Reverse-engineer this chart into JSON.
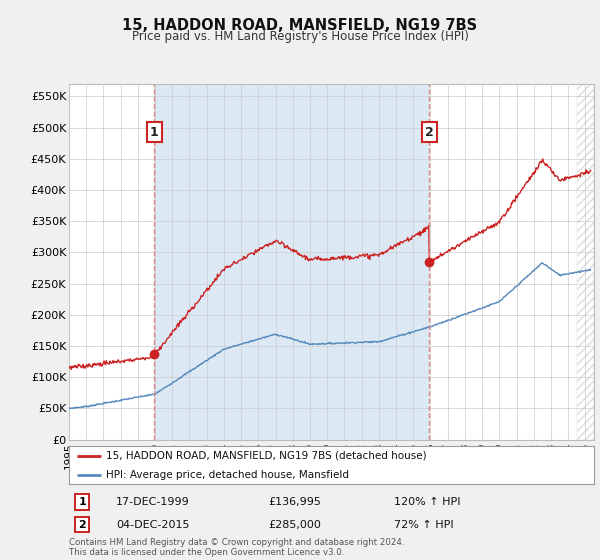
{
  "title": "15, HADDON ROAD, MANSFIELD, NG19 7BS",
  "subtitle": "Price paid vs. HM Land Registry's House Price Index (HPI)",
  "property_label": "15, HADDON ROAD, MANSFIELD, NG19 7BS (detached house)",
  "hpi_label": "HPI: Average price, detached house, Mansfield",
  "footer": "Contains HM Land Registry data © Crown copyright and database right 2024.\nThis data is licensed under the Open Government Licence v3.0.",
  "transaction1_date": "17-DEC-1999",
  "transaction1_price": 136995,
  "transaction1_hpi": "120% ↑ HPI",
  "transaction2_date": "04-DEC-2015",
  "transaction2_price": 285000,
  "transaction2_hpi": "72% ↑ HPI",
  "ylim": [
    0,
    570000
  ],
  "yticks": [
    0,
    50000,
    100000,
    150000,
    200000,
    250000,
    300000,
    350000,
    400000,
    450000,
    500000,
    550000
  ],
  "bg_color": "#f0f0f0",
  "plot_bg_color": "#ffffff",
  "highlight_bg_color": "#dce9f5",
  "grid_color": "#cccccc",
  "red_color": "#cc2222",
  "blue_color": "#5588bb",
  "vline_color": "#dd8888",
  "marker1_x": 1999.96,
  "marker1_y": 136995,
  "marker2_x": 2015.92,
  "marker2_y": 285000,
  "xmin": 1995.0,
  "xmax": 2025.5,
  "hatch_start": 2024.5
}
